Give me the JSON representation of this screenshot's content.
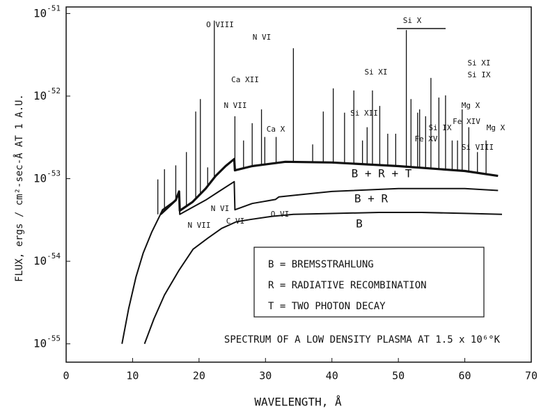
{
  "chart_data": {
    "type": "line",
    "ylabel": "FLUX, ergs / cm²-sec-Å AT 1 A.U.",
    "xlabel": "WAVELENGTH, Å",
    "xlim": [
      0,
      70
    ],
    "xticks": [
      0,
      10,
      20,
      30,
      40,
      50,
      60,
      70
    ],
    "ylim": [
      6e-56,
      1.2e-51
    ],
    "ylog": true,
    "yticks": [
      {
        "value": 1e-51,
        "label": "10-51"
      },
      {
        "value": 1e-52,
        "label": "10-52"
      },
      {
        "value": 1e-53,
        "label": "10-53"
      },
      {
        "value": 1e-54,
        "label": "10-54"
      },
      {
        "value": 1e-55,
        "label": "10-55"
      }
    ],
    "series": [
      {
        "name": "B",
        "color": "#111111",
        "width": 2,
        "x": [
          11.8,
          13.2,
          14.8,
          17,
          19.1,
          21.3,
          23.4,
          25.6,
          27.7,
          31,
          34.2,
          40.6,
          47.1,
          53.5,
          60,
          65.6
        ],
        "values": [
          1e-55,
          2e-55,
          3.9e-55,
          7.8e-55,
          1.4e-54,
          1.9e-54,
          2.5e-54,
          3e-54,
          3.2e-54,
          3.5e-54,
          3.7e-54,
          3.8e-54,
          3.9e-54,
          3.9e-54,
          3.8e-54,
          3.7e-54
        ]
      },
      {
        "name": "B + R",
        "color": "#111111",
        "width": 2,
        "x": [
          8.4,
          9.4,
          10.5,
          11.6,
          12.9,
          14.2,
          14.5,
          16.5,
          17,
          17.1,
          19,
          21,
          23,
          25.3,
          25.4,
          28,
          31.5,
          32,
          36,
          40,
          50,
          60,
          65
        ],
        "values": [
          1e-55,
          2.65e-55,
          6.4e-55,
          1.26e-54,
          2.27e-54,
          3.7e-54,
          4.2e-54,
          5.5e-54,
          6.6e-54,
          3.7e-54,
          4.5e-54,
          5.5e-54,
          7e-54,
          9.2e-54,
          4.2e-54,
          5e-54,
          5.6e-54,
          6e-54,
          6.5e-54,
          7e-54,
          7.6e-54,
          7.6e-54,
          7.2e-54
        ]
      },
      {
        "name": "B + R + T",
        "color": "#111111",
        "width": 3.2,
        "x": [
          14.2,
          16.5,
          17,
          17.1,
          19,
          21,
          22.5,
          24,
          25.3,
          25.4,
          28,
          33,
          40,
          50,
          60,
          65
        ],
        "values": [
          3.7e-54,
          5.5e-54,
          7e-54,
          4.1e-54,
          5.2e-54,
          7.6e-54,
          1.08e-53,
          1.42e-53,
          1.73e-53,
          1.26e-53,
          1.42e-53,
          1.6e-53,
          1.57e-53,
          1.42e-53,
          1.24e-53,
          1.08e-53
        ]
      },
      {
        "name": "LINES",
        "color": "#111111",
        "width": 1.3,
        "style": "spikes",
        "x": [
          13.8,
          14.8,
          16.5,
          18.1,
          19.5,
          20.2,
          21.3,
          22.3,
          25.4,
          26.7,
          28,
          29.4,
          29.9,
          31.6,
          34.2,
          37.1,
          38.7,
          40.2,
          41.9,
          43.3,
          44.6,
          45.3,
          46.1,
          47.2,
          48.4,
          49.6,
          51.2,
          51.9,
          52.9,
          53.2,
          54.1,
          54.9,
          56.1,
          57.1,
          58.1,
          58.9,
          59.6,
          60.6,
          61.9,
          63.2
        ],
        "values": [
          9.8e-54,
          1.3e-53,
          1.45e-53,
          2.1e-53,
          6.5e-53,
          9.2e-53,
          1.37e-53,
          8.2e-52,
          5.7e-53,
          2.9e-53,
          4.7e-53,
          6.9e-53,
          3.2e-53,
          3.2e-53,
          3.8e-52,
          2.6e-53,
          6.5e-53,
          1.24e-52,
          6.3e-53,
          1.17e-52,
          2.9e-53,
          4.2e-53,
          1.17e-52,
          7.6e-53,
          3.5e-53,
          3.5e-53,
          6.3e-52,
          9.2e-53,
          6.3e-53,
          6.9e-53,
          5.7e-53,
          1.66e-52,
          9.6e-53,
          1.02e-52,
          2.9e-53,
          2.9e-53,
          6.9e-53,
          4.2e-53,
          2.1e-53,
          2.9e-53
        ]
      }
    ],
    "annotations": [
      "Si X",
      "Si XI",
      "Si IX",
      "N VI",
      "Ca XII",
      "N VII",
      "O VIII",
      "Si XI",
      "Si XII",
      "Ca X",
      "Mg X",
      "Fe XIV",
      "Fe XV",
      "Si IX",
      "Mg X",
      "Si VIII",
      "C VI",
      "N VI",
      "N VII",
      "O VI",
      "B + R + T",
      "B + R",
      "B"
    ],
    "legend": [
      "B = BREMSSTRAHLUNG",
      "R = RADIATIVE RECOMBINATION",
      "T = TWO PHOTON DECAY"
    ],
    "note": "SPECTRUM OF A LOW DENSITY PLASMA AT 1.5 x 10⁶°K"
  }
}
